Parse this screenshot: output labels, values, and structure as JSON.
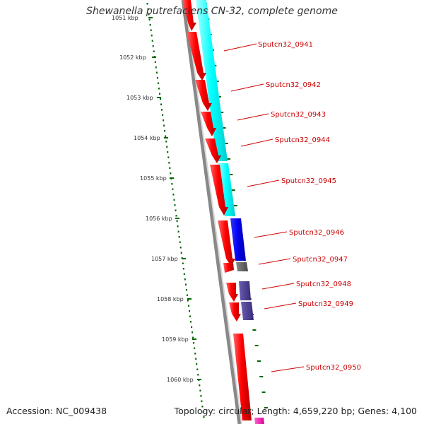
{
  "title": "Shewanella putrefaciens CN-32, complete genome",
  "accession": "Accession: NC_009438",
  "summary": "Topology: circular; Length: 4,659,220 bp; Genes: 4,100",
  "chart_data": {
    "type": "genome-map",
    "ticks": [
      "1051 kbp",
      "1052 kbp",
      "1053 kbp",
      "1054 kbp",
      "1055 kbp",
      "1056 kbp",
      "1057 kbp",
      "1058 kbp",
      "1059 kbp",
      "1060 kbp"
    ],
    "genes": [
      "Sputcn32_0941",
      "Sputcn32_0942",
      "Sputcn32_0943",
      "Sputcn32_0944",
      "Sputcn32_0945",
      "Sputcn32_0946",
      "Sputcn32_0947",
      "Sputcn32_0948",
      "Sputcn32_0949",
      "Sputcn32_0950"
    ],
    "colors": {
      "gene_cds": "#ff0000",
      "feature_cyan": "#00ffff",
      "feature_blue": "#0000ee",
      "feature_gray": "#666666",
      "feature_purple": "#4b3c8c",
      "feature_magenta": "#ff00aa",
      "backbone": "#808080",
      "dotted_track": "#006600",
      "label_text": "#cc0000"
    }
  }
}
